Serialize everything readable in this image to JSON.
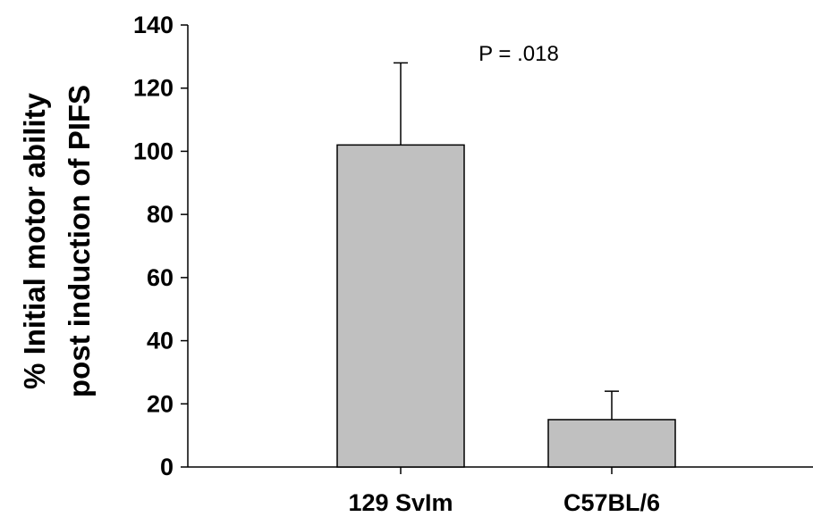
{
  "chart_data": {
    "type": "bar",
    "categories": [
      "129 SvIm",
      "C57BL/6"
    ],
    "values": [
      102,
      15
    ],
    "errors": [
      26,
      9
    ],
    "ylabel_lines": [
      "% Initial motor ability",
      "post induction of PIFS"
    ],
    "xlabel": "",
    "ylim": [
      0,
      140
    ],
    "yticks": [
      0,
      20,
      40,
      60,
      80,
      100,
      120,
      140
    ],
    "annotation": "P = .018",
    "grid": false,
    "legend": "none",
    "bar_color": "#c0c0c0",
    "edge_color": "#000000"
  }
}
